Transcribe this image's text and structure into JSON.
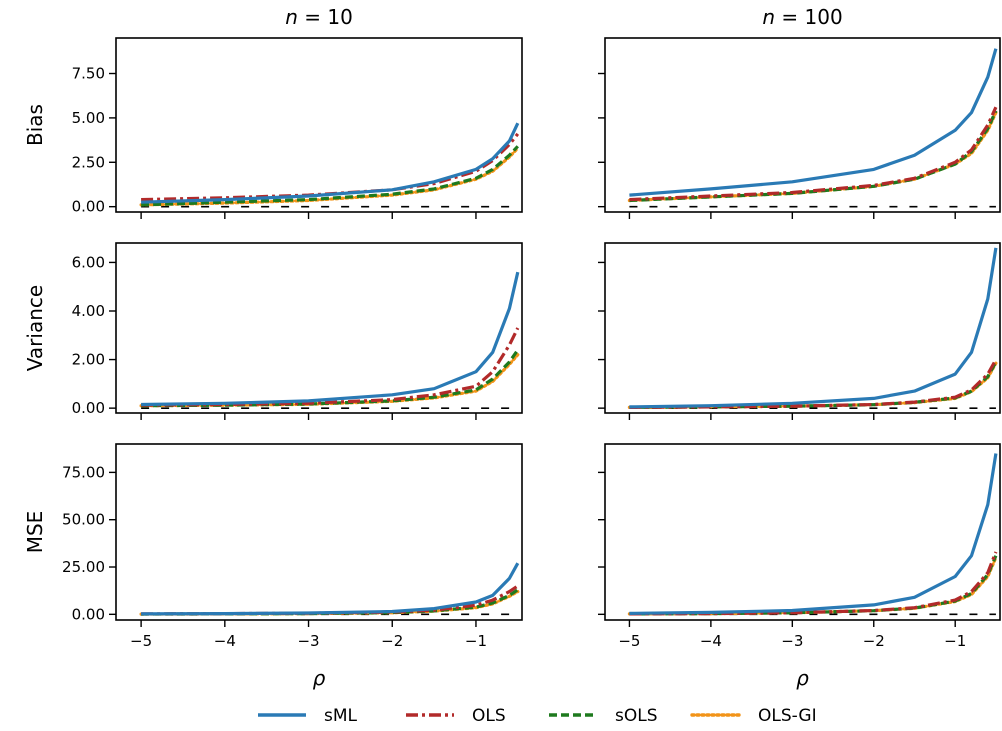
{
  "columns": [
    {
      "title_var": "n",
      "title_eq": " = 10"
    },
    {
      "title_var": "n",
      "title_eq": " = 100"
    }
  ],
  "xlabel": "ρ",
  "xticks": [
    "−5",
    "−4",
    "−3",
    "−2",
    "−1"
  ],
  "rows": [
    {
      "ylabel": "Bias",
      "yticks": [
        "0.00",
        "2.50",
        "5.00",
        "7.50"
      ]
    },
    {
      "ylabel": "Variance",
      "yticks": [
        "0.00",
        "2.00",
        "4.00",
        "6.00"
      ]
    },
    {
      "ylabel": "MSE",
      "yticks": [
        "0.00",
        "25.00",
        "50.00",
        "75.00"
      ]
    }
  ],
  "legend": [
    {
      "label": "sML"
    },
    {
      "label": "OLS"
    },
    {
      "label": "sOLS"
    },
    {
      "label": "OLS-GI"
    }
  ],
  "colors": {
    "sML": "#2a7ab5",
    "OLS": "#b22a2a",
    "sOLS": "#1e7a1e",
    "OLS-GI": "#f29418",
    "reference": "#000000"
  },
  "chart_data": [
    {
      "type": "line",
      "panel": "n=10 Bias",
      "xlim": [
        -5.3,
        -0.45
      ],
      "ylim": [
        -0.3,
        9.5
      ],
      "yticks": [
        0,
        2.5,
        5,
        7.5
      ],
      "xticks": [
        -5,
        -4,
        -3,
        -2,
        -1
      ],
      "x": [
        -5,
        -4,
        -3,
        -2,
        -1.5,
        -1,
        -0.8,
        -0.6,
        -0.5
      ],
      "series": [
        {
          "name": "sML",
          "values": [
            0.25,
            0.4,
            0.6,
            0.95,
            1.4,
            2.1,
            2.7,
            3.7,
            4.7
          ]
        },
        {
          "name": "OLS",
          "values": [
            0.4,
            0.5,
            0.65,
            0.95,
            1.3,
            2.0,
            2.6,
            3.5,
            4.1
          ]
        },
        {
          "name": "sOLS",
          "values": [
            0.1,
            0.25,
            0.4,
            0.7,
            1.0,
            1.6,
            2.1,
            2.9,
            3.4
          ]
        },
        {
          "name": "OLS-GI",
          "values": [
            0.1,
            0.2,
            0.35,
            0.65,
            0.95,
            1.55,
            2.0,
            2.8,
            3.3
          ]
        }
      ],
      "reference": 0
    },
    {
      "type": "line",
      "panel": "n=100 Bias",
      "xlim": [
        -5.3,
        -0.45
      ],
      "ylim": [
        -0.3,
        9.5
      ],
      "yticks": [
        0,
        2.5,
        5,
        7.5
      ],
      "xticks": [
        -5,
        -4,
        -3,
        -2,
        -1
      ],
      "x": [
        -5,
        -4,
        -3,
        -2,
        -1.5,
        -1,
        -0.8,
        -0.6,
        -0.5
      ],
      "series": [
        {
          "name": "sML",
          "values": [
            0.65,
            1.0,
            1.4,
            2.1,
            2.9,
            4.3,
            5.3,
            7.3,
            8.9
          ]
        },
        {
          "name": "OLS",
          "values": [
            0.4,
            0.6,
            0.8,
            1.2,
            1.6,
            2.5,
            3.2,
            4.6,
            5.6
          ]
        },
        {
          "name": "sOLS",
          "values": [
            0.35,
            0.55,
            0.75,
            1.15,
            1.55,
            2.4,
            3.1,
            4.4,
            5.4
          ]
        },
        {
          "name": "OLS-GI",
          "values": [
            0.35,
            0.55,
            0.75,
            1.15,
            1.55,
            2.4,
            3.0,
            4.3,
            5.3
          ]
        }
      ],
      "reference": 0
    },
    {
      "type": "line",
      "panel": "n=10 Variance",
      "xlim": [
        -5.3,
        -0.45
      ],
      "ylim": [
        -0.2,
        6.8
      ],
      "yticks": [
        0,
        2,
        4,
        6
      ],
      "xticks": [
        -5,
        -4,
        -3,
        -2,
        -1
      ],
      "x": [
        -5,
        -4,
        -3,
        -2,
        -1.5,
        -1,
        -0.8,
        -0.6,
        -0.5
      ],
      "series": [
        {
          "name": "sML",
          "values": [
            0.15,
            0.2,
            0.3,
            0.55,
            0.8,
            1.5,
            2.3,
            4.1,
            5.6
          ]
        },
        {
          "name": "OLS",
          "values": [
            0.12,
            0.15,
            0.2,
            0.35,
            0.55,
            0.9,
            1.5,
            2.6,
            3.3
          ]
        },
        {
          "name": "sOLS",
          "values": [
            0.1,
            0.12,
            0.17,
            0.3,
            0.45,
            0.75,
            1.2,
            1.9,
            2.4
          ]
        },
        {
          "name": "OLS-GI",
          "values": [
            0.1,
            0.12,
            0.16,
            0.28,
            0.42,
            0.7,
            1.1,
            1.8,
            2.2
          ]
        }
      ],
      "reference": 0
    },
    {
      "type": "line",
      "panel": "n=100 Variance",
      "xlim": [
        -5.3,
        -0.45
      ],
      "ylim": [
        -0.2,
        6.8
      ],
      "yticks": [
        0,
        2,
        4,
        6
      ],
      "xticks": [
        -5,
        -4,
        -3,
        -2,
        -1
      ],
      "x": [
        -5,
        -4,
        -3,
        -2,
        -1.5,
        -1,
        -0.8,
        -0.6,
        -0.5
      ],
      "series": [
        {
          "name": "sML",
          "values": [
            0.05,
            0.1,
            0.2,
            0.4,
            0.7,
            1.4,
            2.3,
            4.5,
            6.6
          ]
        },
        {
          "name": "OLS",
          "values": [
            0.03,
            0.05,
            0.08,
            0.15,
            0.25,
            0.45,
            0.75,
            1.4,
            2.0
          ]
        },
        {
          "name": "sOLS",
          "values": [
            0.03,
            0.05,
            0.08,
            0.14,
            0.24,
            0.42,
            0.7,
            1.3,
            1.9
          ]
        },
        {
          "name": "OLS-GI",
          "values": [
            0.03,
            0.05,
            0.08,
            0.14,
            0.23,
            0.4,
            0.68,
            1.25,
            1.85
          ]
        }
      ],
      "reference": 0
    },
    {
      "type": "line",
      "panel": "n=10 MSE",
      "xlim": [
        -5.3,
        -0.45
      ],
      "ylim": [
        -3,
        90
      ],
      "yticks": [
        0,
        25,
        50,
        75
      ],
      "xticks": [
        -5,
        -4,
        -3,
        -2,
        -1
      ],
      "x": [
        -5,
        -4,
        -3,
        -2,
        -1.5,
        -1,
        -0.8,
        -0.6,
        -0.5
      ],
      "series": [
        {
          "name": "sML",
          "values": [
            0.2,
            0.4,
            0.7,
            1.5,
            3.0,
            6.5,
            10.0,
            19.0,
            27.0
          ]
        },
        {
          "name": "OLS",
          "values": [
            0.2,
            0.4,
            0.6,
            1.2,
            2.2,
            4.8,
            7.5,
            12.0,
            15.0
          ]
        },
        {
          "name": "sOLS",
          "values": [
            0.1,
            0.2,
            0.4,
            0.9,
            1.8,
            3.8,
            6.0,
            10.0,
            13.0
          ]
        },
        {
          "name": "OLS-GI",
          "values": [
            0.1,
            0.2,
            0.4,
            0.8,
            1.7,
            3.5,
            5.5,
            9.5,
            12.0
          ]
        }
      ],
      "reference": 0
    },
    {
      "type": "line",
      "panel": "n=100 MSE",
      "xlim": [
        -5.3,
        -0.45
      ],
      "ylim": [
        -3,
        90
      ],
      "yticks": [
        0,
        25,
        50,
        75
      ],
      "xticks": [
        -5,
        -4,
        -3,
        -2,
        -1
      ],
      "x": [
        -5,
        -4,
        -3,
        -2,
        -1.5,
        -1,
        -0.8,
        -0.6,
        -0.5
      ],
      "series": [
        {
          "name": "sML",
          "values": [
            0.5,
            1.0,
            2.0,
            5.0,
            9.0,
            20.0,
            31.0,
            58.0,
            85.0
          ]
        },
        {
          "name": "OLS",
          "values": [
            0.2,
            0.4,
            0.8,
            2.0,
            3.5,
            7.5,
            12.0,
            22.0,
            33.0
          ]
        },
        {
          "name": "sOLS",
          "values": [
            0.2,
            0.4,
            0.8,
            1.9,
            3.3,
            7.0,
            11.0,
            21.0,
            31.0
          ]
        },
        {
          "name": "OLS-GI",
          "values": [
            0.2,
            0.4,
            0.8,
            1.9,
            3.2,
            6.8,
            10.5,
            20.0,
            30.0
          ]
        }
      ],
      "reference": 0
    }
  ]
}
